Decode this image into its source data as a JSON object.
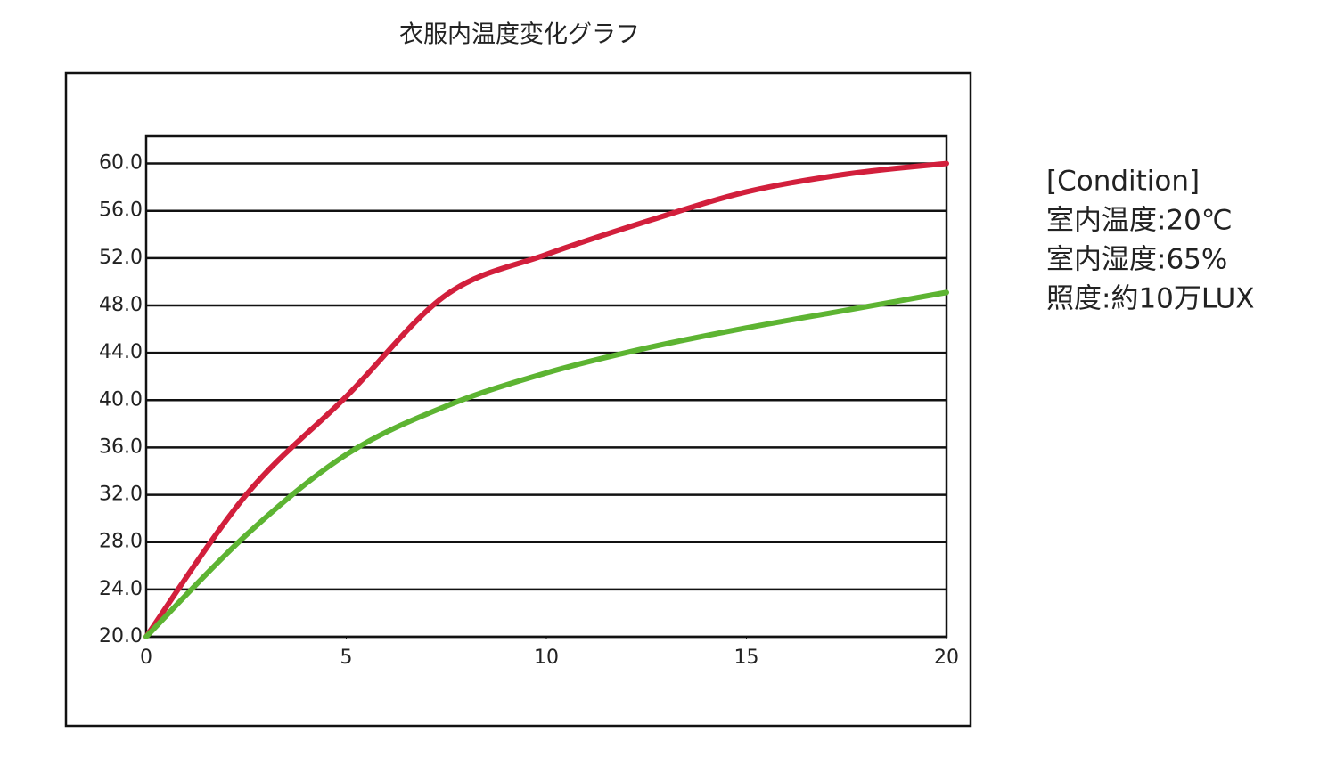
{
  "chart_data": {
    "type": "line",
    "title": "衣服内温度変化グラフ",
    "x": [
      0,
      2.5,
      5,
      7.5,
      10,
      12.5,
      15,
      17.5,
      20
    ],
    "series": [
      {
        "color": "#d21f3c",
        "values": [
          20,
          32,
          40.3,
          48.9,
          52.3,
          55.1,
          57.6,
          59.1,
          60
        ]
      },
      {
        "color": "#5db432",
        "values": [
          20,
          28.6,
          35.4,
          39.5,
          42.3,
          44.4,
          46.1,
          47.6,
          49.1
        ]
      }
    ],
    "xlim": [
      0,
      20
    ],
    "xticks": [
      0,
      5,
      10,
      15,
      20
    ],
    "ylim": [
      20,
      62.3
    ],
    "yticks": [
      {
        "value": 20,
        "label": "20.0"
      },
      {
        "value": 24,
        "label": "24.0"
      },
      {
        "value": 28,
        "label": "28.0"
      },
      {
        "value": 32,
        "label": "32.0"
      },
      {
        "value": 36,
        "label": "36.0"
      },
      {
        "value": 40,
        "label": "40.0"
      },
      {
        "value": 44,
        "label": "44.0"
      },
      {
        "value": 48,
        "label": "48.0"
      },
      {
        "value": 52,
        "label": "52.0"
      },
      {
        "value": 56,
        "label": "56.0"
      },
      {
        "value": 60,
        "label": "60.0"
      }
    ],
    "grid": true,
    "annotations": [
      "[Condition]",
      "室内温度:20℃",
      "室内湿度:65%",
      "照度:約10万LUX"
    ]
  }
}
